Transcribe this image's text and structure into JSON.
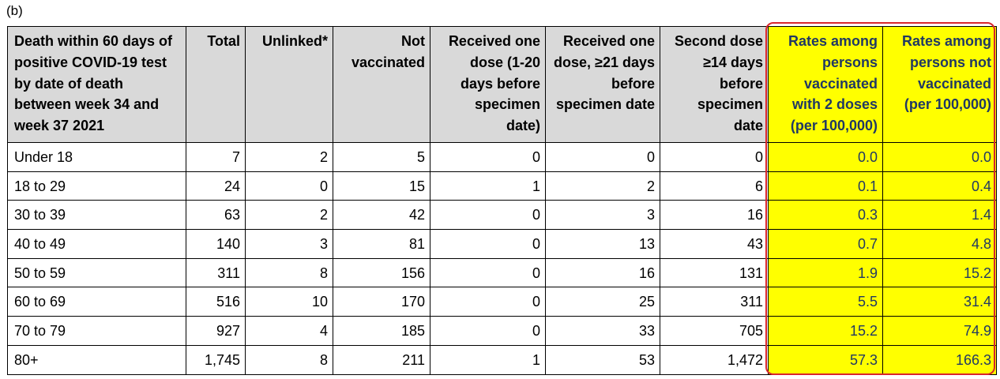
{
  "panel_label": "(b)",
  "table": {
    "headers": [
      "Death within 60 days of positive COVID-19 test by date of death between week 34 and week 37 2021",
      "Total",
      "Unlinked*",
      "Not vaccinated",
      "Received one dose (1-20 days before specimen date)",
      "Received one dose, ≥21 days before specimen date",
      "Second dose ≥14 days before specimen date",
      "Rates among persons vaccinated with 2 doses (per 100,000)",
      "Rates among persons not vaccinated (per 100,000)"
    ],
    "rows": [
      [
        "Under 18",
        "7",
        "2",
        "5",
        "0",
        "0",
        "0",
        "0.0",
        "0.0"
      ],
      [
        "18 to 29",
        "24",
        "0",
        "15",
        "1",
        "2",
        "6",
        "0.1",
        "0.4"
      ],
      [
        "30 to 39",
        "63",
        "2",
        "42",
        "0",
        "3",
        "16",
        "0.3",
        "1.4"
      ],
      [
        "40 to 49",
        "140",
        "3",
        "81",
        "0",
        "13",
        "43",
        "0.7",
        "4.8"
      ],
      [
        "50 to 59",
        "311",
        "8",
        "156",
        "0",
        "16",
        "131",
        "1.9",
        "15.2"
      ],
      [
        "60 to 69",
        "516",
        "10",
        "170",
        "0",
        "25",
        "311",
        "5.5",
        "31.4"
      ],
      [
        "70 to 79",
        "927",
        "4",
        "185",
        "0",
        "33",
        "705",
        "15.2",
        "74.9"
      ],
      [
        "80+",
        "1,745",
        "8",
        "211",
        "1",
        "53",
        "1,472",
        "57.3",
        "166.3"
      ]
    ]
  },
  "colors": {
    "header_background": "#d9d9d9",
    "highlight_fill": "#ffff00",
    "highlight_outline": "#d9262c",
    "highlight_text": "#203864"
  }
}
